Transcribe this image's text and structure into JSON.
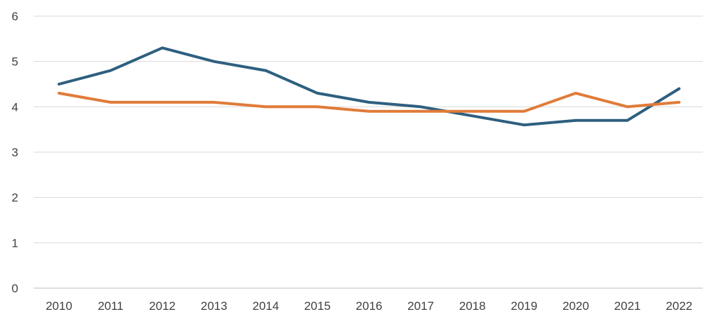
{
  "chart_data": {
    "type": "line",
    "title": "",
    "xlabel": "",
    "ylabel": "",
    "x": [
      "2010",
      "2011",
      "2012",
      "2013",
      "2014",
      "2015",
      "2016",
      "2017",
      "2018",
      "2019",
      "2020",
      "2021",
      "2022"
    ],
    "ylim": [
      0,
      6
    ],
    "yticks": [
      "0",
      "1",
      "2",
      "3",
      "4",
      "5",
      "6"
    ],
    "grid": true,
    "legend": "none",
    "series": [
      {
        "color": "#2e5f7f",
        "values": [
          4.5,
          4.8,
          5.3,
          5.0,
          4.8,
          4.3,
          4.1,
          4.0,
          3.8,
          3.6,
          3.7,
          3.7,
          4.4
        ]
      },
      {
        "color": "#e07b39",
        "values": [
          4.3,
          4.1,
          4.1,
          4.1,
          4.0,
          4.0,
          3.9,
          3.9,
          3.9,
          3.9,
          4.3,
          4.0,
          4.1
        ]
      }
    ],
    "colors": {
      "grid": "#d9d9d9",
      "axis": "#bfbfbf",
      "text": "#404040"
    }
  }
}
